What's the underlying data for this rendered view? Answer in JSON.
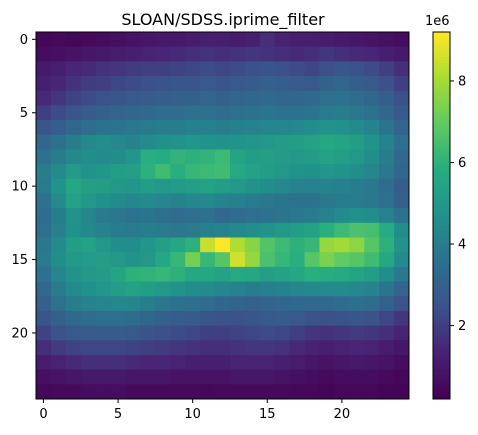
{
  "figure": {
    "title": "SLOAN/SDSS.iprime_filter"
  },
  "chart_data": {
    "type": "heatmap",
    "title": "SLOAN/SDSS.iprime_filter",
    "xlabel": "",
    "ylabel": "",
    "colormap": "viridis",
    "rows": 25,
    "cols": 25,
    "x_ticks": [
      0,
      5,
      10,
      15,
      20
    ],
    "y_ticks": [
      0,
      5,
      10,
      15,
      20
    ],
    "x_tick_labels": [
      "0",
      "5",
      "10",
      "15",
      "20"
    ],
    "y_tick_labels": [
      "0",
      "5",
      "10",
      "15",
      "20"
    ],
    "colorbar": {
      "vmin": 200000,
      "vmax": 9200000,
      "ticks": [
        2000000,
        4000000,
        6000000,
        8000000
      ],
      "tick_labels": [
        "2",
        "4",
        "6",
        "8"
      ],
      "offset_label": "1e6"
    },
    "values_1e6": [
      [
        0.4,
        0.5,
        0.4,
        0.5,
        0.6,
        0.7,
        0.8,
        0.9,
        1.0,
        1.0,
        1.1,
        1.2,
        1.2,
        1.1,
        1.2,
        1.6,
        1.3,
        1.2,
        1.2,
        1.1,
        1.0,
        0.9,
        0.8,
        0.7,
        0.6
      ],
      [
        0.6,
        0.7,
        0.8,
        0.9,
        1.0,
        1.1,
        1.2,
        1.3,
        1.4,
        1.5,
        1.6,
        1.7,
        1.6,
        1.7,
        1.8,
        1.7,
        1.6,
        1.5,
        1.6,
        1.8,
        1.6,
        1.5,
        1.4,
        1.2,
        1.0
      ],
      [
        1.0,
        1.2,
        1.4,
        1.5,
        1.7,
        1.8,
        1.9,
        2.0,
        2.0,
        2.1,
        2.2,
        2.3,
        2.2,
        2.3,
        2.4,
        2.5,
        2.4,
        2.3,
        2.2,
        2.4,
        2.6,
        2.5,
        2.3,
        2.0,
        1.6
      ],
      [
        1.2,
        1.4,
        1.7,
        1.9,
        2.0,
        2.2,
        2.3,
        2.4,
        2.5,
        2.6,
        2.6,
        2.7,
        2.6,
        2.7,
        2.8,
        3.0,
        2.9,
        2.8,
        2.7,
        3.0,
        3.1,
        2.9,
        2.7,
        2.4,
        2.0
      ],
      [
        1.5,
        1.8,
        2.1,
        2.3,
        2.5,
        2.6,
        2.7,
        2.8,
        2.9,
        3.0,
        3.0,
        3.1,
        3.0,
        3.1,
        3.2,
        3.3,
        3.2,
        3.2,
        3.3,
        3.5,
        3.6,
        3.4,
        3.2,
        2.9,
        2.4
      ],
      [
        2.0,
        2.3,
        2.6,
        2.8,
        3.0,
        3.1,
        3.2,
        3.3,
        3.4,
        3.4,
        3.5,
        3.5,
        3.4,
        3.5,
        3.6,
        3.7,
        3.6,
        3.6,
        3.7,
        3.9,
        4.0,
        3.8,
        3.6,
        3.2,
        2.7
      ],
      [
        2.6,
        2.9,
        3.2,
        3.4,
        3.6,
        3.7,
        3.8,
        3.9,
        4.0,
        4.0,
        4.1,
        4.1,
        4.0,
        4.1,
        4.2,
        4.3,
        4.3,
        4.4,
        4.6,
        4.8,
        4.7,
        4.5,
        4.2,
        3.7,
        3.1
      ],
      [
        3.2,
        3.6,
        4.0,
        4.4,
        4.6,
        4.4,
        4.2,
        4.5,
        4.7,
        4.8,
        4.9,
        4.8,
        4.7,
        4.8,
        4.9,
        5.0,
        5.1,
        5.2,
        5.4,
        5.6,
        5.5,
        5.2,
        4.8,
        4.2,
        3.5
      ],
      [
        3.6,
        4.0,
        4.4,
        4.6,
        4.5,
        4.6,
        4.9,
        5.9,
        5.8,
        6.1,
        6.0,
        6.1,
        6.3,
        5.5,
        5.2,
        5.3,
        5.1,
        5.0,
        5.1,
        5.4,
        5.3,
        5.0,
        4.6,
        4.0,
        3.3
      ],
      [
        4.0,
        4.5,
        5.1,
        4.8,
        4.9,
        5.2,
        5.3,
        6.0,
        6.4,
        5.9,
        6.2,
        6.3,
        6.4,
        5.7,
        5.4,
        5.2,
        5.0,
        4.8,
        4.7,
        4.9,
        4.8,
        4.6,
        4.3,
        3.8,
        3.2
      ],
      [
        3.9,
        4.8,
        5.6,
        5.3,
        5.2,
        5.0,
        4.9,
        5.2,
        5.0,
        5.1,
        5.3,
        5.4,
        5.2,
        5.0,
        4.8,
        4.6,
        4.4,
        4.2,
        4.1,
        4.2,
        4.1,
        4.0,
        3.8,
        3.4,
        2.9
      ],
      [
        3.6,
        4.5,
        5.4,
        5.0,
        4.7,
        4.5,
        4.3,
        4.5,
        4.3,
        4.2,
        4.3,
        4.4,
        4.2,
        4.1,
        3.9,
        3.8,
        3.7,
        3.6,
        3.6,
        3.8,
        3.9,
        3.9,
        3.8,
        3.5,
        3.0
      ],
      [
        3.4,
        4.0,
        4.8,
        4.3,
        3.9,
        3.8,
        3.6,
        3.7,
        3.5,
        3.4,
        3.5,
        3.6,
        3.3,
        3.4,
        3.5,
        3.6,
        3.7,
        3.8,
        4.0,
        4.2,
        4.5,
        4.7,
        4.6,
        4.2,
        3.6
      ],
      [
        3.5,
        4.1,
        4.7,
        4.4,
        4.2,
        4.0,
        3.9,
        4.0,
        3.9,
        3.8,
        3.9,
        4.1,
        4.2,
        4.4,
        4.6,
        4.8,
        5.0,
        5.2,
        5.4,
        5.9,
        6.3,
        6.6,
        6.5,
        5.8,
        4.6
      ],
      [
        3.8,
        4.5,
        5.2,
        5.4,
        5.0,
        4.6,
        4.6,
        4.9,
        5.3,
        5.6,
        6.0,
        8.5,
        9.2,
        8.2,
        7.6,
        6.7,
        6.3,
        6.0,
        6.2,
        7.8,
        8.0,
        7.7,
        6.8,
        6.0,
        4.8
      ],
      [
        3.9,
        4.6,
        5.0,
        5.1,
        5.2,
        5.0,
        4.8,
        5.0,
        5.6,
        6.2,
        7.3,
        6.2,
        6.8,
        8.6,
        7.8,
        6.6,
        6.2,
        5.9,
        6.8,
        7.4,
        7.0,
        6.8,
        6.4,
        5.6,
        4.5
      ],
      [
        3.6,
        4.3,
        4.8,
        5.0,
        5.1,
        5.5,
        6.0,
        6.1,
        6.2,
        6.0,
        5.6,
        5.6,
        5.4,
        5.7,
        5.6,
        5.3,
        5.4,
        5.6,
        5.9,
        5.8,
        5.7,
        5.5,
        5.2,
        4.6,
        3.8
      ],
      [
        3.3,
        4.0,
        4.5,
        4.7,
        4.9,
        5.2,
        5.4,
        5.2,
        5.0,
        4.8,
        4.6,
        4.5,
        4.3,
        4.2,
        4.0,
        4.1,
        4.2,
        4.3,
        4.4,
        4.5,
        4.5,
        4.4,
        4.2,
        3.7,
        3.1
      ],
      [
        3.0,
        3.6,
        4.0,
        4.2,
        4.3,
        4.4,
        4.3,
        4.0,
        3.8,
        3.6,
        3.5,
        3.4,
        3.2,
        3.1,
        3.0,
        3.1,
        3.2,
        3.3,
        3.3,
        3.3,
        3.4,
        3.5,
        3.4,
        3.0,
        2.5
      ],
      [
        2.6,
        3.0,
        3.3,
        3.4,
        3.5,
        3.5,
        3.4,
        3.2,
        3.0,
        2.9,
        2.8,
        2.6,
        2.5,
        2.5,
        2.6,
        2.7,
        2.8,
        2.7,
        2.5,
        2.4,
        2.5,
        2.6,
        2.5,
        2.2,
        1.8
      ],
      [
        2.1,
        2.5,
        2.7,
        2.8,
        2.8,
        2.8,
        2.7,
        2.5,
        2.4,
        2.3,
        2.2,
        2.0,
        2.0,
        2.1,
        2.2,
        2.3,
        2.2,
        2.0,
        1.8,
        1.7,
        1.8,
        1.9,
        1.8,
        1.6,
        1.3
      ],
      [
        1.6,
        1.9,
        2.1,
        2.2,
        2.2,
        2.2,
        2.1,
        2.0,
        1.9,
        1.8,
        1.7,
        1.6,
        1.6,
        1.7,
        1.8,
        1.8,
        1.7,
        1.5,
        1.3,
        1.2,
        1.3,
        1.4,
        1.3,
        1.1,
        0.9
      ],
      [
        1.1,
        1.3,
        1.5,
        1.6,
        1.6,
        1.6,
        1.5,
        1.4,
        1.4,
        1.3,
        1.2,
        1.2,
        1.2,
        1.3,
        1.3,
        1.3,
        1.2,
        1.1,
        0.9,
        0.8,
        0.9,
        1.0,
        0.9,
        0.8,
        0.6
      ],
      [
        0.7,
        0.8,
        0.9,
        1.0,
        1.0,
        1.0,
        0.9,
        0.9,
        0.9,
        0.8,
        0.8,
        0.8,
        0.8,
        0.9,
        0.9,
        0.9,
        0.8,
        0.7,
        0.6,
        0.5,
        0.6,
        0.6,
        0.6,
        0.5,
        0.4
      ],
      [
        0.4,
        0.5,
        0.5,
        0.6,
        0.6,
        0.6,
        0.5,
        0.5,
        0.5,
        0.5,
        0.5,
        0.4,
        0.5,
        0.5,
        0.5,
        0.5,
        0.5,
        0.4,
        0.4,
        0.3,
        0.4,
        0.4,
        0.4,
        0.3,
        0.3
      ]
    ]
  }
}
